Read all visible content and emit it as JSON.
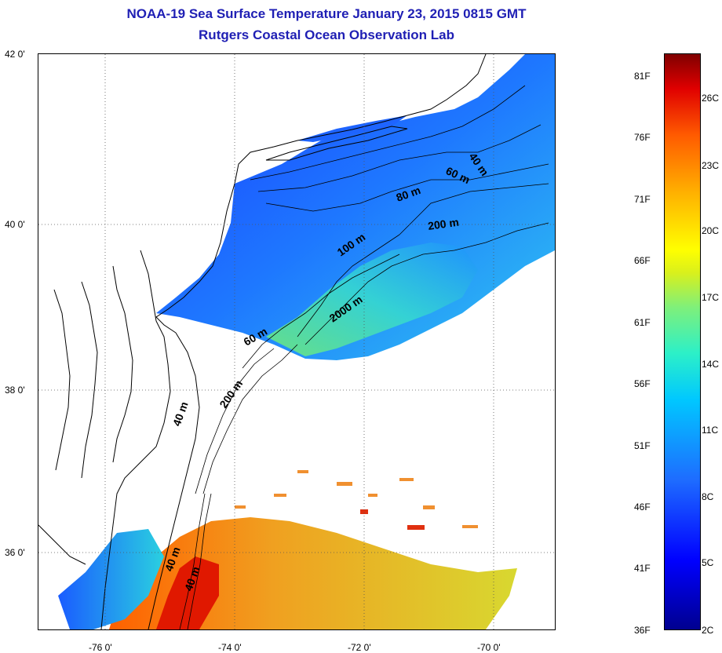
{
  "header": {
    "title": "NOAA-19 Sea Surface Temperature January 23, 2015 0815 GMT",
    "subtitle": "Rutgers Coastal Ocean Observation Lab"
  },
  "axes": {
    "lat_labels": [
      "42 0'",
      "40 0'",
      "38 0'",
      "36 0'"
    ],
    "lon_labels": [
      "-76 0'",
      "-74 0'",
      "-72 0'",
      "-70 0'"
    ]
  },
  "isobaths": [
    "40 m",
    "60 m",
    "80 m",
    "200 m",
    "100 m",
    "2000 m",
    "60 m",
    "200 m",
    "40 m",
    "40 m",
    "40 m"
  ],
  "colorbar": {
    "fahrenheit": [
      "81F",
      "76F",
      "71F",
      "66F",
      "61F",
      "56F",
      "51F",
      "46F",
      "41F",
      "36F"
    ],
    "celsius": [
      "26C",
      "23C",
      "20C",
      "17C",
      "14C",
      "11C",
      "8C",
      "5C",
      "2C"
    ]
  },
  "colors": {
    "title": "#1f1fb4",
    "cold": "#0000ff",
    "warm": "#e00000"
  }
}
